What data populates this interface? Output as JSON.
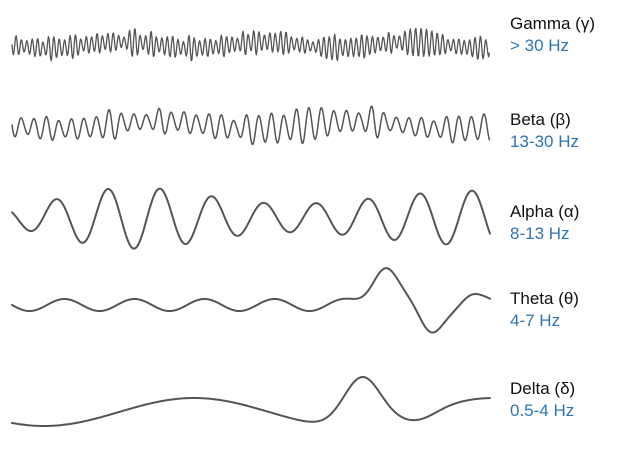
{
  "bands": [
    {
      "name": "Gamma (γ)",
      "range": "> 30 Hz"
    },
    {
      "name": "Beta (β)",
      "range": "13-30 Hz"
    },
    {
      "name": "Alpha (α)",
      "range": "8-13 Hz"
    },
    {
      "name": "Theta (θ)",
      "range": "4-7 Hz"
    },
    {
      "name": "Delta (δ)",
      "range": "0.5-4 Hz"
    }
  ],
  "colors": {
    "wave": "#555555",
    "label": "#111111",
    "range": "#2e75b6"
  }
}
